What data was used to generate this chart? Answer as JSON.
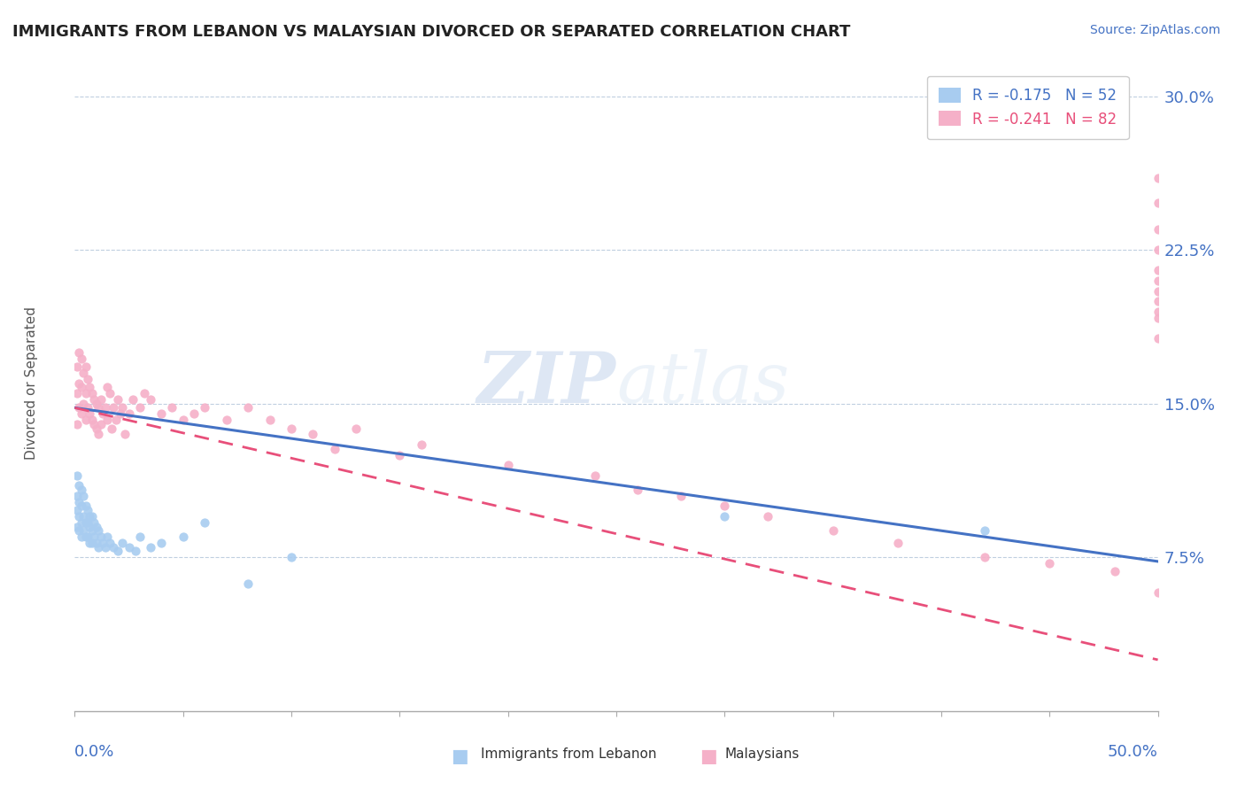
{
  "title": "IMMIGRANTS FROM LEBANON VS MALAYSIAN DIVORCED OR SEPARATED CORRELATION CHART",
  "source_text": "Source: ZipAtlas.com",
  "ylabel": "Divorced or Separated",
  "yticks": [
    0.075,
    0.15,
    0.225,
    0.3
  ],
  "ytick_labels": [
    "7.5%",
    "15.0%",
    "22.5%",
    "30.0%"
  ],
  "xlim": [
    0.0,
    0.5
  ],
  "ylim": [
    0.0,
    0.32
  ],
  "legend_r1": "R = -0.175",
  "legend_n1": "N = 52",
  "legend_r2": "R = -0.241",
  "legend_n2": "N = 82",
  "series1_color": "#a8ccf0",
  "series2_color": "#f5b0c8",
  "trendline1_color": "#4472c4",
  "trendline2_color": "#e84f7a",
  "watermark_zip": "ZIP",
  "watermark_atlas": "atlas",
  "background_color": "#ffffff",
  "trendline1_x0": 0.0,
  "trendline1_y0": 0.148,
  "trendline1_x1": 0.5,
  "trendline1_y1": 0.073,
  "trendline2_x0": 0.0,
  "trendline2_y0": 0.148,
  "trendline2_x1": 0.5,
  "trendline2_y1": 0.025,
  "scatter1_x": [
    0.001,
    0.001,
    0.001,
    0.001,
    0.002,
    0.002,
    0.002,
    0.002,
    0.003,
    0.003,
    0.003,
    0.003,
    0.004,
    0.004,
    0.004,
    0.005,
    0.005,
    0.005,
    0.006,
    0.006,
    0.006,
    0.007,
    0.007,
    0.007,
    0.008,
    0.008,
    0.008,
    0.009,
    0.009,
    0.01,
    0.01,
    0.011,
    0.011,
    0.012,
    0.013,
    0.014,
    0.015,
    0.016,
    0.018,
    0.02,
    0.022,
    0.025,
    0.028,
    0.03,
    0.035,
    0.04,
    0.05,
    0.06,
    0.08,
    0.1,
    0.3,
    0.42
  ],
  "scatter1_y": [
    0.115,
    0.105,
    0.098,
    0.09,
    0.11,
    0.102,
    0.095,
    0.088,
    0.108,
    0.1,
    0.092,
    0.085,
    0.105,
    0.095,
    0.088,
    0.1,
    0.092,
    0.085,
    0.098,
    0.092,
    0.085,
    0.095,
    0.09,
    0.082,
    0.095,
    0.088,
    0.082,
    0.092,
    0.085,
    0.09,
    0.082,
    0.088,
    0.08,
    0.085,
    0.082,
    0.08,
    0.085,
    0.082,
    0.08,
    0.078,
    0.082,
    0.08,
    0.078,
    0.085,
    0.08,
    0.082,
    0.085,
    0.092,
    0.062,
    0.075,
    0.095,
    0.088
  ],
  "scatter2_x": [
    0.001,
    0.001,
    0.001,
    0.002,
    0.002,
    0.002,
    0.003,
    0.003,
    0.003,
    0.004,
    0.004,
    0.005,
    0.005,
    0.005,
    0.006,
    0.006,
    0.007,
    0.007,
    0.008,
    0.008,
    0.009,
    0.009,
    0.01,
    0.01,
    0.011,
    0.011,
    0.012,
    0.012,
    0.013,
    0.014,
    0.015,
    0.015,
    0.016,
    0.017,
    0.018,
    0.019,
    0.02,
    0.021,
    0.022,
    0.023,
    0.025,
    0.027,
    0.03,
    0.032,
    0.035,
    0.04,
    0.045,
    0.05,
    0.055,
    0.06,
    0.07,
    0.08,
    0.09,
    0.1,
    0.11,
    0.12,
    0.13,
    0.15,
    0.16,
    0.2,
    0.24,
    0.26,
    0.28,
    0.3,
    0.32,
    0.35,
    0.38,
    0.42,
    0.45,
    0.48,
    0.5,
    0.5,
    0.5,
    0.5,
    0.5,
    0.5,
    0.5,
    0.5,
    0.5,
    0.5,
    0.5,
    0.5
  ],
  "scatter2_y": [
    0.168,
    0.155,
    0.14,
    0.175,
    0.16,
    0.148,
    0.172,
    0.158,
    0.145,
    0.165,
    0.15,
    0.168,
    0.155,
    0.142,
    0.162,
    0.148,
    0.158,
    0.145,
    0.155,
    0.142,
    0.152,
    0.14,
    0.15,
    0.138,
    0.148,
    0.135,
    0.152,
    0.14,
    0.145,
    0.148,
    0.158,
    0.142,
    0.155,
    0.138,
    0.148,
    0.142,
    0.152,
    0.145,
    0.148,
    0.135,
    0.145,
    0.152,
    0.148,
    0.155,
    0.152,
    0.145,
    0.148,
    0.142,
    0.145,
    0.148,
    0.142,
    0.148,
    0.142,
    0.138,
    0.135,
    0.128,
    0.138,
    0.125,
    0.13,
    0.12,
    0.115,
    0.108,
    0.105,
    0.1,
    0.095,
    0.088,
    0.082,
    0.075,
    0.072,
    0.068,
    0.225,
    0.21,
    0.2,
    0.195,
    0.248,
    0.235,
    0.215,
    0.205,
    0.192,
    0.182,
    0.26,
    0.058
  ]
}
